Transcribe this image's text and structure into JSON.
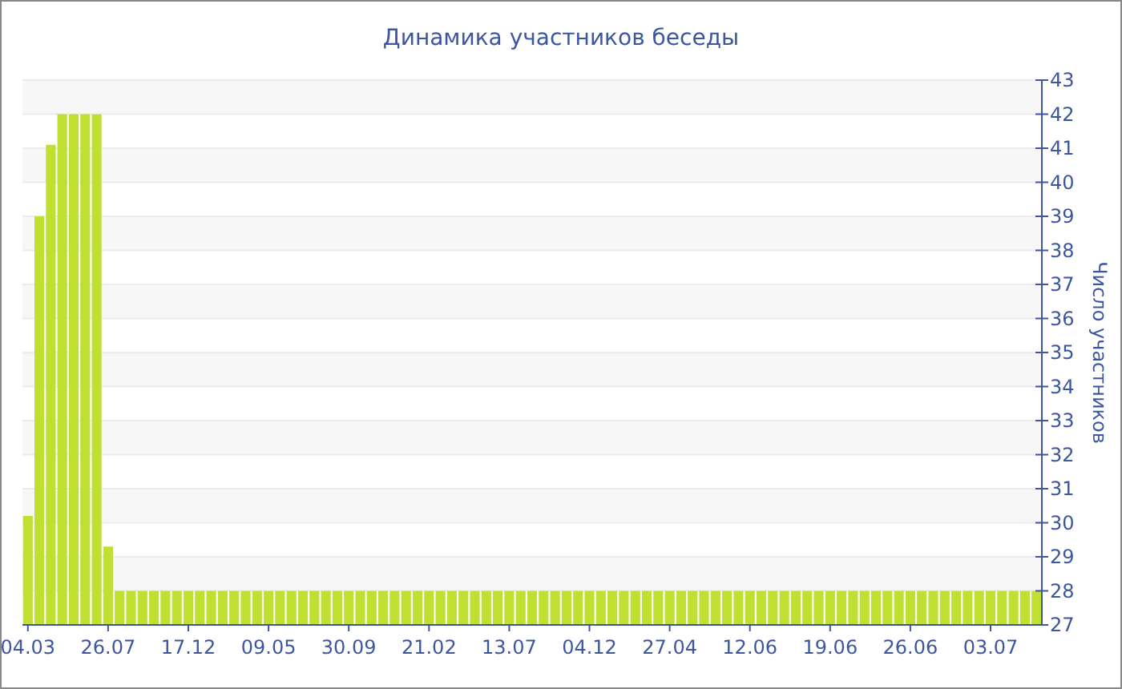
{
  "chart_data": {
    "type": "bar",
    "title": "Динамика участников беседы",
    "ylabel": "Число участников",
    "categories": [
      "04.03",
      null,
      null,
      null,
      null,
      null,
      null,
      "26.07",
      null,
      null,
      null,
      null,
      null,
      null,
      "17.12",
      null,
      null,
      null,
      null,
      null,
      null,
      "09.05",
      null,
      null,
      null,
      null,
      null,
      null,
      "30.09",
      null,
      null,
      null,
      null,
      null,
      null,
      "21.02",
      null,
      null,
      null,
      null,
      null,
      null,
      "13.07",
      null,
      null,
      null,
      null,
      null,
      null,
      "04.12",
      null,
      null,
      null,
      null,
      null,
      null,
      "27.04",
      null,
      null,
      null,
      null,
      null,
      null,
      "12.06",
      null,
      null,
      null,
      null,
      null,
      null,
      "19.06",
      null,
      null,
      null,
      null,
      null,
      null,
      "26.06",
      null,
      null,
      null,
      null,
      null,
      null,
      "03.07",
      null,
      null,
      null,
      null
    ],
    "values": [
      30.2,
      39,
      41.1,
      42,
      42,
      42,
      42,
      29.3,
      28,
      28,
      28,
      28,
      28,
      28,
      28,
      28,
      28,
      28,
      28,
      28,
      28,
      28,
      28,
      28,
      28,
      28,
      28,
      28,
      28,
      28,
      28,
      28,
      28,
      28,
      28,
      28,
      28,
      28,
      28,
      28,
      28,
      28,
      28,
      28,
      28,
      28,
      28,
      28,
      28,
      28,
      28,
      28,
      28,
      28,
      28,
      28,
      28,
      28,
      28,
      28,
      28,
      28,
      28,
      28,
      28,
      28,
      28,
      28,
      28,
      28,
      28,
      28,
      28,
      28,
      28,
      28,
      28,
      28,
      28,
      28,
      28,
      28,
      28,
      28,
      28,
      28,
      28,
      28,
      28
    ],
    "color": "#bfe030",
    "ylim": [
      27,
      43
    ],
    "yticks": [
      27,
      28,
      29,
      30,
      31,
      32,
      33,
      34,
      35,
      36,
      37,
      38,
      39,
      40,
      41,
      42,
      43
    ],
    "grid": "y"
  }
}
